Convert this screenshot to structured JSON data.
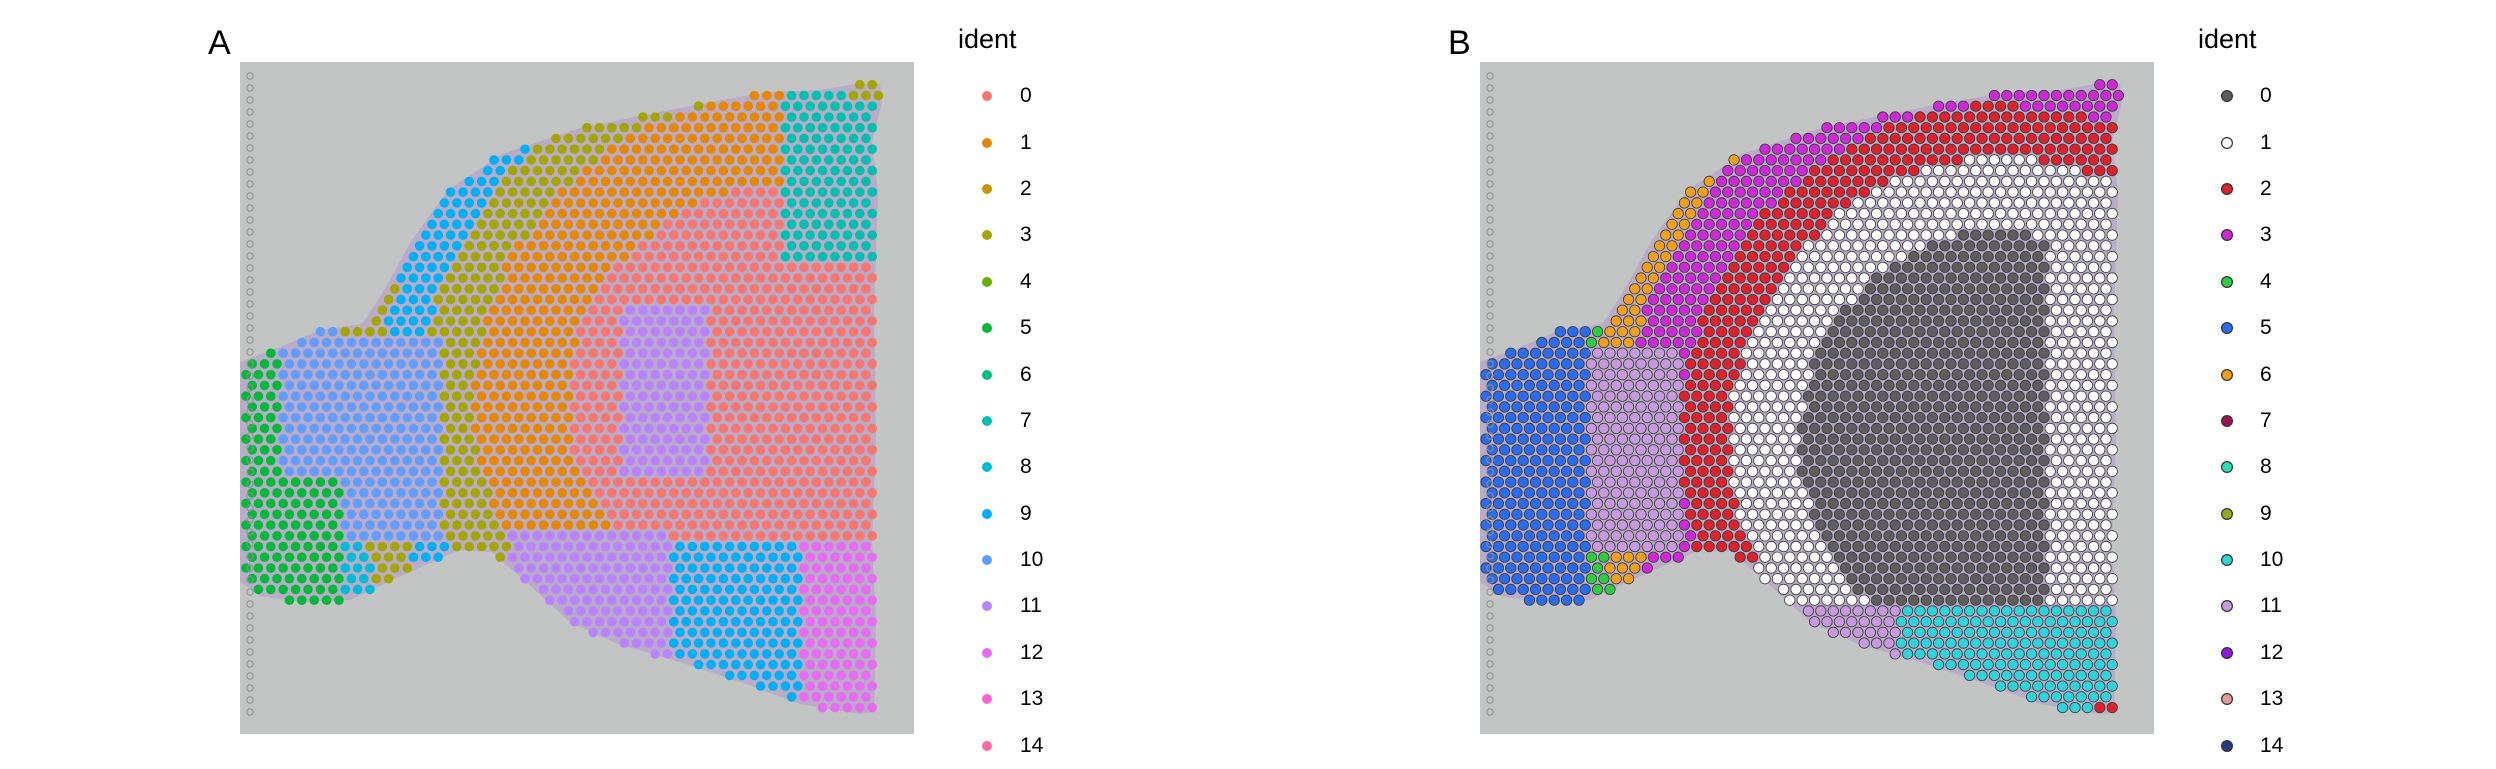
{
  "chart_data": [
    {
      "type": "scatter",
      "panel_label": "A",
      "title": "",
      "legend": {
        "title": "ident",
        "placement": "right",
        "point_outline": false,
        "entries": [
          {
            "label": "0",
            "color": "#F8766D"
          },
          {
            "label": "1",
            "color": "#E58700"
          },
          {
            "label": "2",
            "color": "#C99800"
          },
          {
            "label": "3",
            "color": "#A3A500"
          },
          {
            "label": "4",
            "color": "#6BB100"
          },
          {
            "label": "5",
            "color": "#00BA38"
          },
          {
            "label": "6",
            "color": "#00BF7D"
          },
          {
            "label": "7",
            "color": "#00C0AF"
          },
          {
            "label": "8",
            "color": "#00BCD8"
          },
          {
            "label": "9",
            "color": "#00B0F6"
          },
          {
            "label": "10",
            "color": "#619CFF"
          },
          {
            "label": "11",
            "color": "#B983FF"
          },
          {
            "label": "12",
            "color": "#E76BF3"
          },
          {
            "label": "13",
            "color": "#FD61D1"
          },
          {
            "label": "14",
            "color": "#FF67A4"
          }
        ]
      },
      "background": "tissue section image (sagittal mouse brain slice)",
      "axes": "none",
      "grid": false
    },
    {
      "type": "scatter",
      "panel_label": "B",
      "title": "",
      "legend": {
        "title": "ident",
        "placement": "right",
        "point_outline": true,
        "entries": [
          {
            "label": "0",
            "color": "#5E5E5E"
          },
          {
            "label": "1",
            "color": "#FFFFFF"
          },
          {
            "label": "2",
            "color": "#E0202A"
          },
          {
            "label": "3",
            "color": "#D028D8"
          },
          {
            "label": "4",
            "color": "#2ECC40"
          },
          {
            "label": "5",
            "color": "#2A6CF0"
          },
          {
            "label": "6",
            "color": "#F2A017"
          },
          {
            "label": "7",
            "color": "#A01058"
          },
          {
            "label": "8",
            "color": "#27E1B9"
          },
          {
            "label": "9",
            "color": "#93A81E"
          },
          {
            "label": "10",
            "color": "#2ED4DC"
          },
          {
            "label": "11",
            "color": "#C79AE0"
          },
          {
            "label": "12",
            "color": "#8E1AE3"
          },
          {
            "label": "13",
            "color": "#E59C96"
          },
          {
            "label": "14",
            "color": "#1F3E84"
          }
        ]
      },
      "background": "tissue section image (sagittal mouse brain slice)",
      "axes": "none",
      "grid": false
    }
  ]
}
